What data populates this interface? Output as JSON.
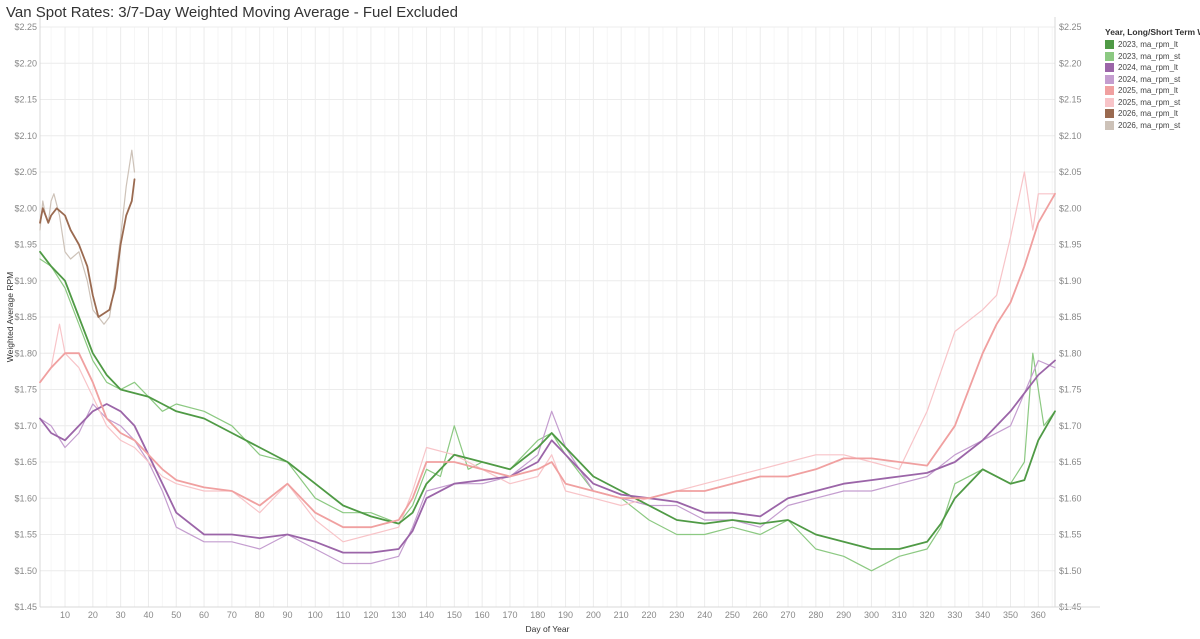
{
  "chart_data": {
    "type": "line",
    "title": "Van Spot Rates: 3/7-Day Weighted Moving Average - Fuel Excluded",
    "xlabel": "Day of Year",
    "ylabel": "Weighted Average RPM",
    "xlim": [
      1,
      366
    ],
    "ylim": [
      1.45,
      2.25
    ],
    "x_ticks": [
      "10",
      "20",
      "30",
      "40",
      "50",
      "60",
      "70",
      "80",
      "90",
      "100",
      "110",
      "120",
      "130",
      "140",
      "150",
      "160",
      "170",
      "180",
      "190",
      "200",
      "210",
      "220",
      "230",
      "240",
      "250",
      "260",
      "270",
      "280",
      "290",
      "300",
      "310",
      "320",
      "330",
      "340",
      "350",
      "360"
    ],
    "y_ticks": [
      "$1.45",
      "$1.50",
      "$1.55",
      "$1.60",
      "$1.65",
      "$1.70",
      "$1.75",
      "$1.80",
      "$1.85",
      "$1.90",
      "$1.95",
      "$2.00",
      "$2.05",
      "$2.10",
      "$2.15",
      "$2.20",
      "$2.25"
    ],
    "grid": true,
    "legend_position": "right",
    "legend_title": "Year, Long/Short Term WMA",
    "series": [
      {
        "name": "2023, ma_rpm_lt",
        "color": "#4f9a45",
        "width": 1.8,
        "x": [
          1,
          5,
          10,
          15,
          20,
          25,
          30,
          35,
          40,
          45,
          50,
          60,
          70,
          80,
          90,
          100,
          110,
          120,
          130,
          135,
          140,
          150,
          160,
          170,
          180,
          185,
          190,
          200,
          210,
          220,
          230,
          240,
          250,
          260,
          270,
          280,
          290,
          300,
          310,
          320,
          325,
          330,
          340,
          350,
          355,
          360,
          366
        ],
        "y": [
          1.94,
          1.92,
          1.9,
          1.85,
          1.8,
          1.77,
          1.75,
          1.745,
          1.74,
          1.73,
          1.72,
          1.71,
          1.69,
          1.67,
          1.65,
          1.62,
          1.59,
          1.575,
          1.565,
          1.58,
          1.62,
          1.66,
          1.65,
          1.64,
          1.67,
          1.69,
          1.67,
          1.63,
          1.61,
          1.59,
          1.57,
          1.565,
          1.57,
          1.565,
          1.57,
          1.55,
          1.54,
          1.53,
          1.53,
          1.54,
          1.565,
          1.6,
          1.64,
          1.62,
          1.625,
          1.68,
          1.72
        ]
      },
      {
        "name": "2023, ma_rpm_st",
        "color": "#8cc982",
        "width": 1.2,
        "x": [
          1,
          5,
          10,
          15,
          20,
          25,
          30,
          35,
          40,
          45,
          50,
          60,
          70,
          80,
          90,
          100,
          110,
          120,
          130,
          135,
          140,
          145,
          150,
          155,
          160,
          170,
          180,
          185,
          190,
          200,
          210,
          220,
          230,
          240,
          250,
          260,
          270,
          280,
          290,
          300,
          310,
          320,
          325,
          330,
          340,
          350,
          355,
          358,
          362,
          366
        ],
        "y": [
          1.93,
          1.92,
          1.89,
          1.84,
          1.79,
          1.76,
          1.75,
          1.76,
          1.74,
          1.72,
          1.73,
          1.72,
          1.7,
          1.66,
          1.65,
          1.6,
          1.58,
          1.58,
          1.565,
          1.59,
          1.64,
          1.63,
          1.7,
          1.64,
          1.65,
          1.64,
          1.68,
          1.69,
          1.66,
          1.61,
          1.6,
          1.57,
          1.55,
          1.55,
          1.56,
          1.55,
          1.57,
          1.53,
          1.52,
          1.5,
          1.52,
          1.53,
          1.56,
          1.62,
          1.64,
          1.62,
          1.65,
          1.8,
          1.7,
          1.72
        ]
      },
      {
        "name": "2024, ma_rpm_lt",
        "color": "#9b65a8",
        "width": 1.8,
        "x": [
          1,
          5,
          10,
          15,
          20,
          25,
          30,
          35,
          40,
          45,
          50,
          60,
          70,
          80,
          90,
          100,
          110,
          120,
          130,
          135,
          140,
          150,
          160,
          170,
          180,
          185,
          190,
          200,
          210,
          220,
          230,
          240,
          250,
          260,
          270,
          280,
          290,
          300,
          310,
          320,
          330,
          340,
          350,
          360,
          366
        ],
        "y": [
          1.71,
          1.69,
          1.68,
          1.7,
          1.72,
          1.73,
          1.72,
          1.7,
          1.66,
          1.62,
          1.58,
          1.55,
          1.55,
          1.545,
          1.55,
          1.54,
          1.525,
          1.525,
          1.53,
          1.555,
          1.6,
          1.62,
          1.625,
          1.63,
          1.65,
          1.68,
          1.66,
          1.62,
          1.605,
          1.6,
          1.595,
          1.58,
          1.58,
          1.575,
          1.6,
          1.61,
          1.62,
          1.625,
          1.63,
          1.635,
          1.65,
          1.68,
          1.72,
          1.77,
          1.79
        ]
      },
      {
        "name": "2024, ma_rpm_st",
        "color": "#c49dcf",
        "width": 1.2,
        "x": [
          1,
          5,
          10,
          15,
          20,
          25,
          30,
          35,
          40,
          45,
          50,
          60,
          70,
          80,
          90,
          100,
          110,
          120,
          130,
          135,
          140,
          150,
          160,
          170,
          180,
          185,
          190,
          200,
          210,
          220,
          230,
          240,
          250,
          260,
          270,
          280,
          290,
          300,
          310,
          320,
          330,
          340,
          350,
          360,
          366
        ],
        "y": [
          1.71,
          1.7,
          1.67,
          1.69,
          1.73,
          1.71,
          1.7,
          1.68,
          1.65,
          1.61,
          1.56,
          1.54,
          1.54,
          1.53,
          1.55,
          1.53,
          1.51,
          1.51,
          1.52,
          1.56,
          1.61,
          1.62,
          1.62,
          1.63,
          1.66,
          1.72,
          1.67,
          1.61,
          1.6,
          1.59,
          1.59,
          1.57,
          1.57,
          1.56,
          1.59,
          1.6,
          1.61,
          1.61,
          1.62,
          1.63,
          1.66,
          1.68,
          1.7,
          1.79,
          1.78
        ]
      },
      {
        "name": "2025, ma_rpm_lt",
        "color": "#f0a0a0",
        "width": 1.8,
        "x": [
          1,
          5,
          10,
          15,
          20,
          25,
          30,
          35,
          40,
          45,
          50,
          60,
          70,
          80,
          90,
          100,
          110,
          120,
          130,
          135,
          140,
          150,
          160,
          170,
          180,
          185,
          190,
          200,
          210,
          220,
          230,
          240,
          250,
          260,
          270,
          280,
          290,
          300,
          310,
          320,
          330,
          340,
          345,
          350,
          355,
          360,
          366
        ],
        "y": [
          1.76,
          1.78,
          1.8,
          1.8,
          1.76,
          1.71,
          1.69,
          1.68,
          1.66,
          1.64,
          1.625,
          1.615,
          1.61,
          1.59,
          1.62,
          1.58,
          1.56,
          1.56,
          1.57,
          1.6,
          1.65,
          1.65,
          1.64,
          1.63,
          1.64,
          1.65,
          1.62,
          1.61,
          1.6,
          1.6,
          1.61,
          1.61,
          1.62,
          1.63,
          1.63,
          1.64,
          1.655,
          1.655,
          1.65,
          1.645,
          1.7,
          1.8,
          1.84,
          1.87,
          1.92,
          1.98,
          2.02
        ]
      },
      {
        "name": "2025, ma_rpm_st",
        "color": "#f8c4c8",
        "width": 1.2,
        "x": [
          1,
          5,
          8,
          10,
          15,
          20,
          25,
          30,
          35,
          40,
          45,
          50,
          60,
          70,
          80,
          90,
          100,
          110,
          120,
          130,
          135,
          140,
          150,
          160,
          170,
          180,
          185,
          190,
          200,
          210,
          220,
          230,
          240,
          250,
          260,
          270,
          280,
          290,
          300,
          310,
          320,
          330,
          340,
          345,
          350,
          355,
          358,
          360,
          366
        ],
        "y": [
          1.76,
          1.78,
          1.84,
          1.8,
          1.78,
          1.74,
          1.7,
          1.68,
          1.67,
          1.65,
          1.63,
          1.62,
          1.61,
          1.61,
          1.58,
          1.62,
          1.57,
          1.54,
          1.55,
          1.56,
          1.61,
          1.67,
          1.66,
          1.64,
          1.62,
          1.63,
          1.66,
          1.61,
          1.6,
          1.59,
          1.6,
          1.61,
          1.62,
          1.63,
          1.64,
          1.65,
          1.66,
          1.66,
          1.65,
          1.64,
          1.72,
          1.83,
          1.86,
          1.88,
          1.96,
          2.05,
          1.97,
          2.02,
          2.02
        ]
      },
      {
        "name": "2026, ma_rpm_lt",
        "color": "#9a6a50",
        "width": 1.8,
        "x": [
          1,
          2,
          3,
          4,
          5,
          7,
          10,
          12,
          15,
          18,
          20,
          22,
          24,
          26,
          28,
          30,
          32,
          34,
          35
        ],
        "y": [
          1.98,
          2.0,
          1.99,
          1.98,
          1.99,
          2.0,
          1.99,
          1.97,
          1.95,
          1.92,
          1.88,
          1.85,
          1.855,
          1.86,
          1.89,
          1.95,
          1.99,
          2.01,
          2.04
        ]
      },
      {
        "name": "2026, ma_rpm_st",
        "color": "#cdc2b8",
        "width": 1.2,
        "x": [
          1,
          2,
          3,
          4,
          5,
          6,
          8,
          10,
          12,
          15,
          18,
          20,
          22,
          24,
          26,
          28,
          30,
          32,
          34,
          35
        ],
        "y": [
          1.97,
          2.01,
          1.99,
          1.98,
          2.01,
          2.02,
          1.99,
          1.94,
          1.93,
          1.94,
          1.9,
          1.86,
          1.85,
          1.84,
          1.85,
          1.9,
          1.96,
          2.03,
          2.08,
          2.05
        ]
      }
    ]
  }
}
